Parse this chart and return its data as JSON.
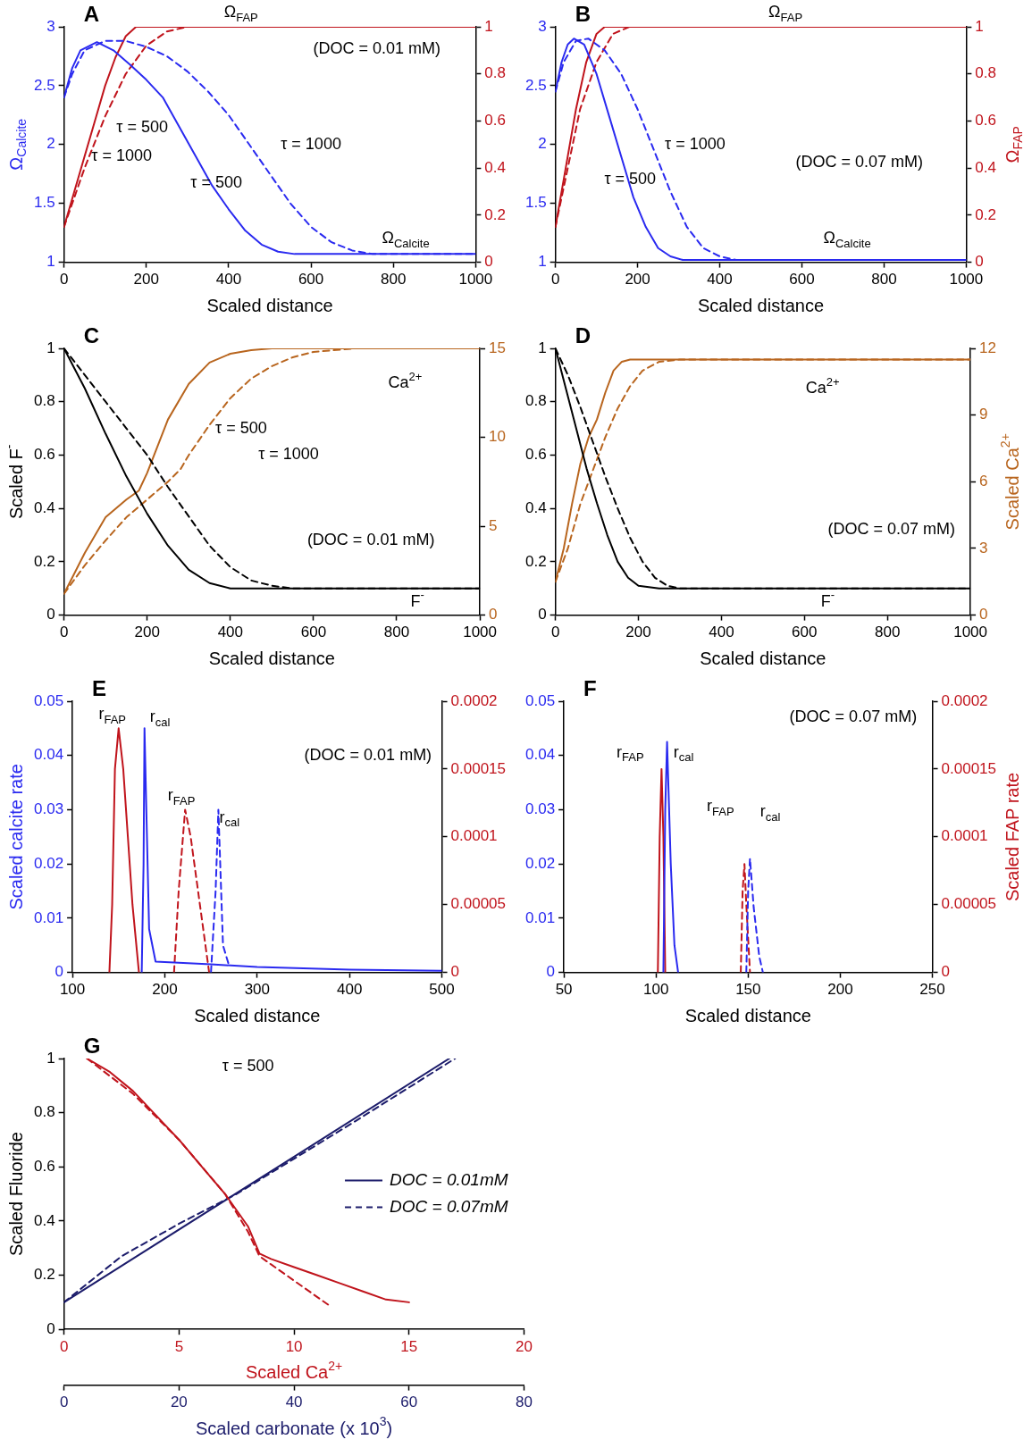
{
  "chart_data": [
    {
      "type": "line",
      "title": "A",
      "ylabel": "Ω$_{Calcite}$",
      "xlabel": "Scaled distance",
      "xlim": [
        0,
        1000
      ],
      "xticks": [
        0,
        200,
        400,
        600,
        800,
        1000
      ],
      "ylim": [
        1,
        3
      ],
      "yticks": [
        1,
        1.5,
        2,
        2.5,
        3
      ],
      "y2lim": [
        0,
        1
      ],
      "y2ticks": [
        0,
        0.2,
        0.4,
        0.6,
        0.8,
        1
      ],
      "series": [
        {
          "color": "#2a2af0",
          "line_style": "solid",
          "x": [
            0,
            20,
            40,
            80,
            120,
            160,
            200,
            240,
            280,
            320,
            360,
            400,
            440,
            480,
            520,
            560,
            600,
            1000
          ],
          "values": [
            2.4,
            2.65,
            2.8,
            2.87,
            2.8,
            2.68,
            2.55,
            2.4,
            2.15,
            1.9,
            1.65,
            1.45,
            1.27,
            1.15,
            1.09,
            1.07,
            1.07,
            1.07
          ]
        },
        {
          "color": "#2a2af0",
          "line_style": "dashed",
          "x": [
            0,
            20,
            50,
            100,
            150,
            200,
            250,
            300,
            350,
            400,
            450,
            500,
            550,
            600,
            650,
            700,
            750,
            800,
            1000
          ],
          "values": [
            2.4,
            2.6,
            2.8,
            2.88,
            2.88,
            2.83,
            2.75,
            2.62,
            2.45,
            2.25,
            2,
            1.75,
            1.5,
            1.3,
            1.17,
            1.1,
            1.07,
            1.07,
            1.07
          ]
        },
        {
          "color": "#c0141c",
          "line_style": "solid",
          "axis": "y2",
          "x": [
            0,
            25,
            50,
            75,
            100,
            125,
            150,
            175,
            1000
          ],
          "values": [
            0.15,
            0.3,
            0.45,
            0.6,
            0.75,
            0.87,
            0.96,
            1,
            1
          ]
        },
        {
          "color": "#c0141c",
          "line_style": "dashed",
          "axis": "y2",
          "x": [
            0,
            50,
            100,
            150,
            200,
            250,
            300,
            1000
          ],
          "values": [
            0.15,
            0.4,
            0.62,
            0.8,
            0.92,
            0.98,
            1,
            1
          ]
        }
      ],
      "annotations": [
        "Ω$_{FAP}$",
        "(DOC = 0.01 mM)",
        "τ = 500",
        "τ = 1000",
        "τ = 500",
        "τ = 1000",
        "Ω$_{Calcite}$"
      ]
    },
    {
      "type": "line",
      "title": "B",
      "y2label": "Ω$_{FAP}$",
      "xlabel": "Scaled distance",
      "xlim": [
        0,
        1000
      ],
      "xticks": [
        0,
        200,
        400,
        600,
        800,
        1000
      ],
      "ylim": [
        1,
        3
      ],
      "yticks": [
        1,
        1.5,
        2,
        2.5,
        3
      ],
      "y2lim": [
        0,
        1
      ],
      "y2ticks": [
        0,
        0.2,
        0.4,
        0.6,
        0.8,
        1
      ],
      "series": [
        {
          "color": "#2a2af0",
          "line_style": "solid",
          "x": [
            0,
            15,
            30,
            45,
            70,
            100,
            130,
            160,
            190,
            220,
            250,
            280,
            310,
            1000
          ],
          "values": [
            2.45,
            2.7,
            2.85,
            2.9,
            2.85,
            2.6,
            2.25,
            1.9,
            1.55,
            1.3,
            1.12,
            1.05,
            1.02,
            1.02
          ]
        },
        {
          "color": "#2a2af0",
          "line_style": "dashed",
          "x": [
            0,
            20,
            50,
            80,
            120,
            160,
            200,
            240,
            280,
            320,
            360,
            400,
            440,
            1000
          ],
          "values": [
            2.45,
            2.7,
            2.88,
            2.9,
            2.8,
            2.6,
            2.3,
            1.95,
            1.6,
            1.3,
            1.12,
            1.05,
            1.02,
            1.02
          ]
        },
        {
          "color": "#c0141c",
          "line_style": "solid",
          "axis": "y2",
          "x": [
            0,
            25,
            50,
            75,
            100,
            120,
            1000
          ],
          "values": [
            0.15,
            0.4,
            0.65,
            0.85,
            0.97,
            1,
            1
          ]
        },
        {
          "color": "#c0141c",
          "line_style": "dashed",
          "axis": "y2",
          "x": [
            0,
            30,
            60,
            100,
            140,
            180,
            1000
          ],
          "values": [
            0.15,
            0.4,
            0.65,
            0.85,
            0.97,
            1,
            1
          ]
        }
      ],
      "annotations": [
        "Ω$_{FAP}$",
        "(DOC = 0.07 mM)",
        "τ = 500",
        "τ = 1000",
        "Ω$_{Calcite}$"
      ]
    },
    {
      "type": "line",
      "title": "C",
      "ylabel": "Scaled F$^{-}$",
      "xlabel": "Scaled distance",
      "xlim": [
        0,
        1000
      ],
      "xticks": [
        0,
        200,
        400,
        600,
        800,
        1000
      ],
      "ylim": [
        0,
        1
      ],
      "yticks": [
        0,
        0.2,
        0.4,
        0.6,
        0.8,
        1
      ],
      "y2lim": [
        0,
        15
      ],
      "y2ticks": [
        0,
        5,
        10,
        15
      ],
      "series": [
        {
          "color": "#000000",
          "line_style": "solid",
          "x": [
            0,
            50,
            100,
            150,
            200,
            250,
            300,
            350,
            400,
            1000
          ],
          "values": [
            1,
            0.85,
            0.68,
            0.52,
            0.38,
            0.26,
            0.17,
            0.12,
            0.1,
            0.1
          ]
        },
        {
          "color": "#000000",
          "line_style": "dashed",
          "x": [
            0,
            50,
            100,
            150,
            200,
            250,
            300,
            350,
            400,
            450,
            500,
            550,
            1000
          ],
          "values": [
            1,
            0.9,
            0.8,
            0.7,
            0.6,
            0.48,
            0.37,
            0.26,
            0.18,
            0.13,
            0.11,
            0.1,
            0.1
          ]
        },
        {
          "color": "#b8651e",
          "line_style": "solid",
          "axis": "y2",
          "x": [
            0,
            50,
            100,
            150,
            180,
            200,
            250,
            300,
            350,
            400,
            450,
            500,
            1000
          ],
          "values": [
            1.2,
            3.5,
            5.5,
            6.5,
            7,
            8,
            11,
            13,
            14.2,
            14.7,
            14.9,
            15,
            15
          ]
        },
        {
          "color": "#b8651e",
          "line_style": "dashed",
          "axis": "y2",
          "x": [
            0,
            50,
            100,
            150,
            200,
            250,
            280,
            300,
            350,
            400,
            450,
            500,
            550,
            600,
            700,
            1000
          ],
          "values": [
            1.2,
            2.8,
            4.2,
            5.5,
            6.5,
            7.5,
            8.2,
            9,
            10.7,
            12.2,
            13.3,
            14,
            14.5,
            14.8,
            15,
            15
          ]
        }
      ],
      "annotations": [
        "Ca$^{2+}$",
        "τ = 500",
        "τ = 1000",
        "(DOC = 0.01 mM)",
        "F$^{-}$"
      ]
    },
    {
      "type": "line",
      "title": "D",
      "y2label": "Scaled Ca$^{2+}$",
      "xlabel": "Scaled distance",
      "xlim": [
        0,
        1000
      ],
      "xticks": [
        0,
        200,
        400,
        600,
        800,
        1000
      ],
      "ylim": [
        0,
        1
      ],
      "yticks": [
        0,
        0.2,
        0.4,
        0.6,
        0.8,
        1
      ],
      "y2lim": [
        0,
        12
      ],
      "y2ticks": [
        0,
        3,
        6,
        9,
        12
      ],
      "series": [
        {
          "color": "#000000",
          "line_style": "solid",
          "x": [
            0,
            25,
            50,
            75,
            100,
            125,
            150,
            175,
            200,
            250,
            1000
          ],
          "values": [
            1,
            0.85,
            0.7,
            0.55,
            0.42,
            0.3,
            0.2,
            0.14,
            0.11,
            0.1,
            0.1
          ]
        },
        {
          "color": "#000000",
          "line_style": "dashed",
          "x": [
            0,
            30,
            60,
            90,
            120,
            150,
            180,
            210,
            240,
            270,
            300,
            1000
          ],
          "values": [
            1,
            0.9,
            0.78,
            0.65,
            0.52,
            0.4,
            0.29,
            0.2,
            0.14,
            0.11,
            0.1,
            0.1
          ]
        },
        {
          "color": "#b8651e",
          "line_style": "solid",
          "axis": "y2",
          "x": [
            0,
            20,
            40,
            60,
            80,
            100,
            120,
            140,
            160,
            180,
            1000
          ],
          "values": [
            1.5,
            3,
            5,
            6.8,
            8,
            8.8,
            10,
            11,
            11.4,
            11.5,
            11.5
          ]
        },
        {
          "color": "#b8651e",
          "line_style": "dashed",
          "axis": "y2",
          "x": [
            0,
            30,
            60,
            90,
            120,
            150,
            180,
            210,
            250,
            300,
            1000
          ],
          "values": [
            1.5,
            3,
            5,
            6.5,
            8,
            9.3,
            10.3,
            11,
            11.4,
            11.5,
            11.5
          ]
        }
      ],
      "annotations": [
        "Ca$^{2+}$",
        "(DOC = 0.07 mM)",
        "F$^{-}$"
      ]
    },
    {
      "type": "line",
      "title": "E",
      "ylabel": "Scaled calcite rate",
      "xlabel": "Scaled distance",
      "xlim": [
        100,
        500
      ],
      "xticks": [
        100,
        200,
        300,
        400,
        500
      ],
      "ylim": [
        0,
        0.05
      ],
      "yticks": [
        0,
        0.01,
        0.02,
        0.03,
        0.04,
        0.05
      ],
      "y2lim": [
        0,
        0.0002
      ],
      "y2ticks": [
        0,
        {
          "value": 5e-05,
          "label": "0.00005"
        },
        {
          "value": 0.0001,
          "label": "0.0001"
        },
        {
          "value": 0.00015,
          "label": "0.00015"
        },
        {
          "value": 0.0002,
          "label": "0.0002"
        }
      ],
      "series": [
        {
          "color": "#2a2af0",
          "line_style": "solid",
          "x": [
            175,
            177,
            178,
            180,
            183,
            190,
            250,
            300,
            400,
            500
          ],
          "values": [
            0,
            0.02,
            0.045,
            0.03,
            0.008,
            0.002,
            0.0015,
            0.001,
            0.0005,
            0.0003
          ]
        },
        {
          "color": "#2a2af0",
          "line_style": "dashed",
          "x": [
            250,
            255,
            258,
            260,
            263,
            270
          ],
          "values": [
            0,
            0.015,
            0.03,
            0.02,
            0.005,
            0.001
          ]
        },
        {
          "color": "#c0141c",
          "line_style": "solid",
          "axis": "y2",
          "x": [
            140,
            143,
            146,
            150,
            155,
            160,
            165,
            172
          ],
          "values": [
            0,
            5e-05,
            0.00015,
            0.00018,
            0.00015,
            0.0001,
            5e-05,
            0
          ]
        },
        {
          "color": "#c0141c",
          "line_style": "dashed",
          "axis": "y2",
          "x": [
            210,
            215,
            222,
            228,
            240,
            248
          ],
          "values": [
            0,
            6e-05,
            0.00012,
            0.0001,
            4e-05,
            0
          ]
        }
      ],
      "annotations": [
        "r$_{FAP}$",
        "r$_{cal}$",
        "r$_{FAP}$",
        "r$_{cal}$",
        "(DOC = 0.01 mM)"
      ]
    },
    {
      "type": "line",
      "title": "F",
      "y2label": "Scaled FAP rate",
      "xlabel": "Scaled distance",
      "xlim": [
        50,
        250
      ],
      "xticks": [
        50,
        100,
        150,
        200,
        250
      ],
      "ylim": [
        0,
        0.05
      ],
      "yticks": [
        0,
        0.01,
        0.02,
        0.03,
        0.04,
        0.05
      ],
      "y2lim": [
        0,
        0.0002
      ],
      "y2ticks": [
        0,
        {
          "value": 5e-05,
          "label": "0.00005"
        },
        {
          "value": 0.0001,
          "label": "0.0001"
        },
        {
          "value": 0.00015,
          "label": "0.00015"
        },
        {
          "value": 0.0002,
          "label": "0.0002"
        }
      ],
      "series": [
        {
          "color": "#2a2af0",
          "line_style": "solid",
          "x": [
            104,
            105,
            106,
            108,
            110,
            112
          ],
          "values": [
            0,
            0.03,
            0.0425,
            0.02,
            0.005,
            0
          ]
        },
        {
          "color": "#2a2af0",
          "line_style": "dashed",
          "x": [
            149,
            150,
            151,
            153,
            156,
            158
          ],
          "values": [
            0,
            0.015,
            0.021,
            0.012,
            0.003,
            0
          ]
        },
        {
          "color": "#c0141c",
          "line_style": "solid",
          "axis": "y2",
          "x": [
            101,
            102,
            103,
            104,
            105
          ],
          "values": [
            0,
            0.0001,
            0.00015,
            0.0001,
            0
          ]
        },
        {
          "color": "#c0141c",
          "line_style": "dashed",
          "axis": "y2",
          "x": [
            146,
            147,
            148,
            149,
            151
          ],
          "values": [
            0,
            6e-05,
            8e-05,
            5e-05,
            0
          ]
        }
      ],
      "annotations": [
        "r$_{FAP}$",
        "r$_{cal}$",
        "r$_{FAP}$",
        "r$_{cal}$",
        "(DOC = 0.07 mM)"
      ]
    },
    {
      "type": "line",
      "title": "G",
      "ylabel": "Scaled Fluoride",
      "xlabel": "Scaled Ca$^{2+}$",
      "x2label": "Scaled carbonate (x 10$^{3}$)",
      "xlim": [
        0,
        20
      ],
      "xticks": [
        0,
        5,
        10,
        15,
        20
      ],
      "x2lim": [
        0,
        80
      ],
      "x2ticks": [
        0,
        20,
        40,
        60,
        80
      ],
      "ylim": [
        0,
        1
      ],
      "yticks": [
        0,
        0.2,
        0.4,
        0.6,
        0.8,
        1
      ],
      "legend": "right",
      "series": [
        {
          "color": "#c0141c",
          "line_style": "solid",
          "x": [
            1,
            2,
            3,
            4,
            5,
            6,
            7,
            8,
            8.5,
            9,
            10,
            11,
            12,
            13,
            14,
            15
          ],
          "values": [
            1,
            0.95,
            0.88,
            0.79,
            0.7,
            0.6,
            0.5,
            0.38,
            0.28,
            0.26,
            0.23,
            0.2,
            0.17,
            0.14,
            0.11,
            0.1
          ]
        },
        {
          "color": "#c0141c",
          "line_style": "dashed",
          "x": [
            1,
            3,
            5,
            7,
            8,
            8.5,
            9,
            10,
            11,
            11.5
          ],
          "values": [
            1,
            0.87,
            0.7,
            0.5,
            0.36,
            0.27,
            0.24,
            0.18,
            0.12,
            0.09
          ]
        },
        {
          "name": "DOC = 0.01mM",
          "color": "#1c1c6b",
          "line_style": "solid",
          "axis": "x2",
          "x": [
            0,
            67
          ],
          "values": [
            0.1,
            1
          ]
        },
        {
          "name": "DOC = 0.07mM",
          "color": "#1c1c6b",
          "line_style": "dashed",
          "axis": "x2",
          "x": [
            0,
            10,
            20,
            30,
            50,
            68
          ],
          "values": [
            0.1,
            0.27,
            0.39,
            0.5,
            0.76,
            1
          ]
        }
      ],
      "annotations": [
        "τ = 500"
      ]
    }
  ]
}
